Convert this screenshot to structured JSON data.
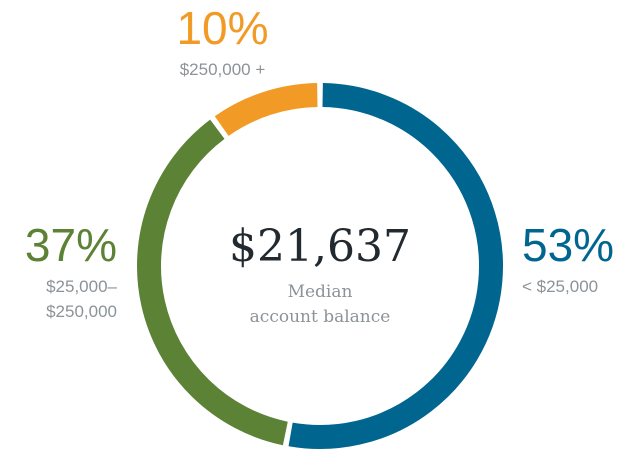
{
  "chart_data": {
    "type": "donut",
    "categories": [
      "< $25,000",
      "$25,000–$250,000",
      "$250,000 +"
    ],
    "values": [
      53,
      37,
      10
    ],
    "value_labels": [
      "53%",
      "37%",
      "10%"
    ],
    "colors": [
      "#00668f",
      "#5c8236",
      "#f29a26"
    ],
    "center_value": "$21,637",
    "center_label": [
      "Median",
      "account balance"
    ]
  }
}
